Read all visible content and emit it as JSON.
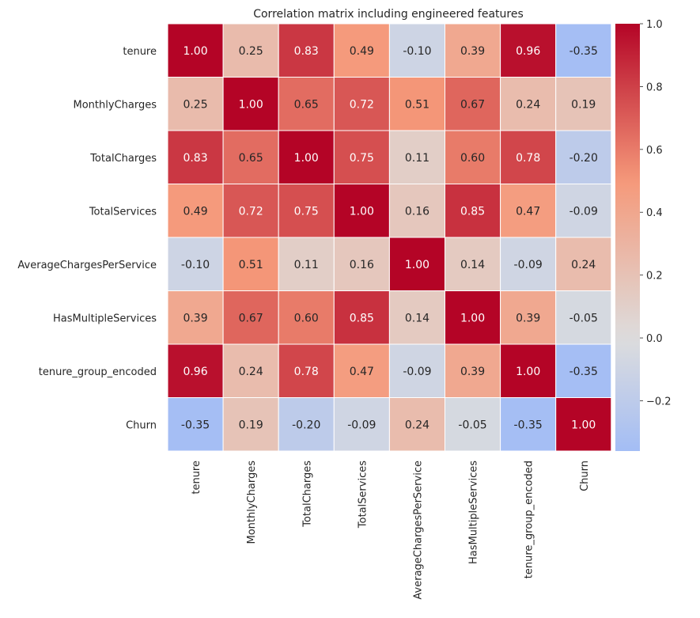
{
  "chart_data": {
    "type": "heatmap",
    "title": "Correlation matrix including engineered features",
    "row_labels": [
      "tenure",
      "MonthlyCharges",
      "TotalCharges",
      "TotalServices",
      "AverageChargesPerService",
      "HasMultipleServices",
      "tenure_group_encoded",
      "Churn"
    ],
    "col_labels": [
      "tenure",
      "MonthlyCharges",
      "TotalCharges",
      "TotalServices",
      "AverageChargesPerService",
      "HasMultipleServices",
      "tenure_group_encoded",
      "Churn"
    ],
    "values": [
      [
        1.0,
        0.25,
        0.83,
        0.49,
        -0.1,
        0.39,
        0.96,
        -0.35
      ],
      [
        0.25,
        1.0,
        0.65,
        0.72,
        0.51,
        0.67,
        0.24,
        0.19
      ],
      [
        0.83,
        0.65,
        1.0,
        0.75,
        0.11,
        0.6,
        0.78,
        -0.2
      ],
      [
        0.49,
        0.72,
        0.75,
        1.0,
        0.16,
        0.85,
        0.47,
        -0.09
      ],
      [
        -0.1,
        0.51,
        0.11,
        0.16,
        1.0,
        0.14,
        -0.09,
        0.24
      ],
      [
        0.39,
        0.67,
        0.6,
        0.85,
        0.14,
        1.0,
        0.39,
        -0.05
      ],
      [
        0.96,
        0.24,
        0.78,
        0.47,
        -0.09,
        0.39,
        1.0,
        -0.35
      ],
      [
        -0.35,
        0.19,
        -0.2,
        -0.09,
        0.24,
        -0.05,
        -0.35,
        1.0
      ]
    ],
    "colormap": "coolwarm",
    "center": 0,
    "vmin": -0.36,
    "vmax": 1.0,
    "colorbar_ticks": [
      1.0,
      0.8,
      0.6,
      0.4,
      0.2,
      0.0,
      -0.2
    ],
    "colorbar_tick_labels": [
      "1.0",
      "0.8",
      "0.6",
      "0.4",
      "0.2",
      "0.0",
      "−0.2"
    ],
    "annotation_format": "0.00"
  }
}
